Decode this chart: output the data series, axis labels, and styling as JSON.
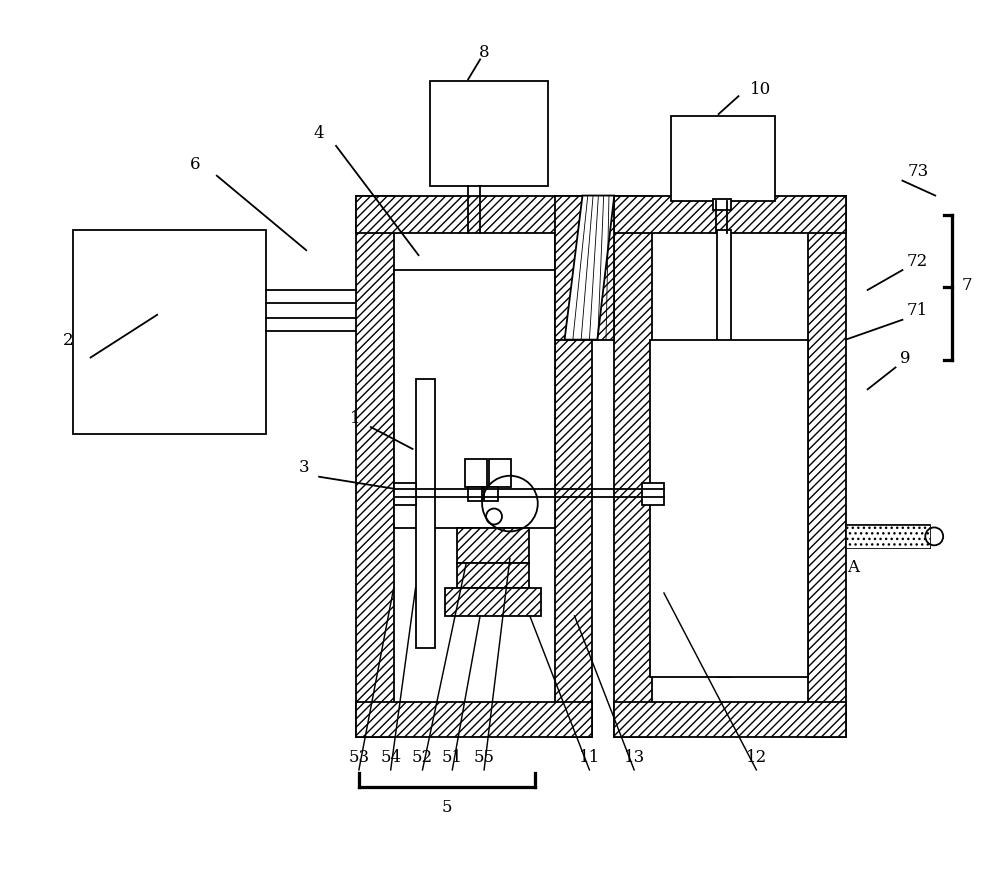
{
  "bg_color": "#ffffff",
  "line_color": "#000000",
  "linewidth": 1.3,
  "figsize": [
    10.0,
    8.79
  ],
  "dpi": 100
}
